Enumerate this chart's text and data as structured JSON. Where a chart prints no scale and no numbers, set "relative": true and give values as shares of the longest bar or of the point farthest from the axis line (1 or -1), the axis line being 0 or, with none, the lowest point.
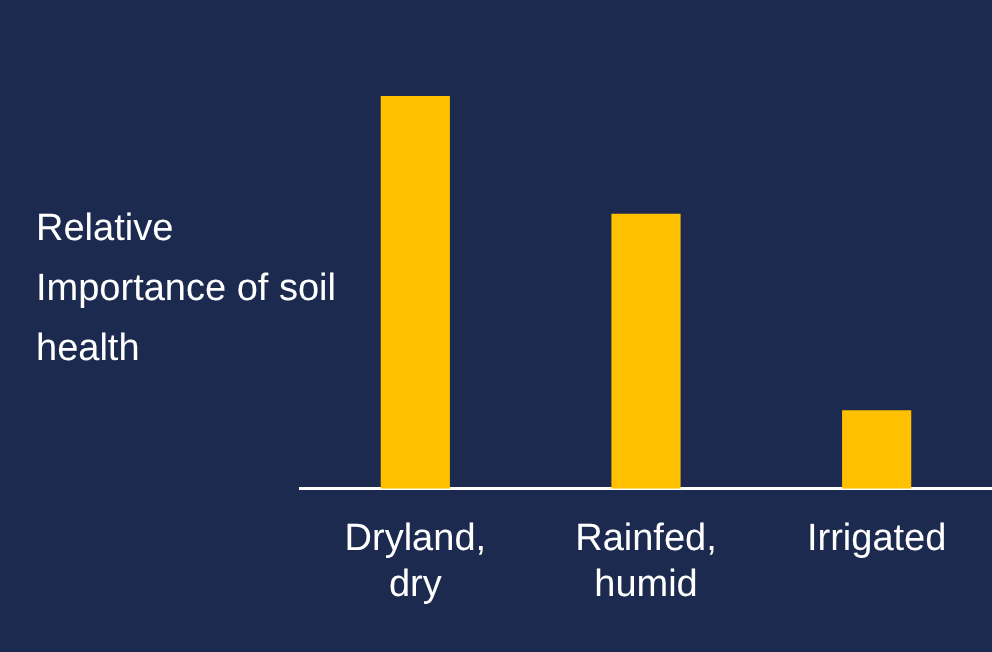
{
  "chart_data": {
    "type": "bar",
    "ylabel": "Relative Importance of soil health",
    "categories": [
      "Dryland, dry",
      "Rainfed, humid",
      "Irrigated"
    ],
    "values": [
      1,
      0.7,
      0.2
    ],
    "color": "#ffc000",
    "relative": true,
    "grid": false,
    "legend": false
  }
}
